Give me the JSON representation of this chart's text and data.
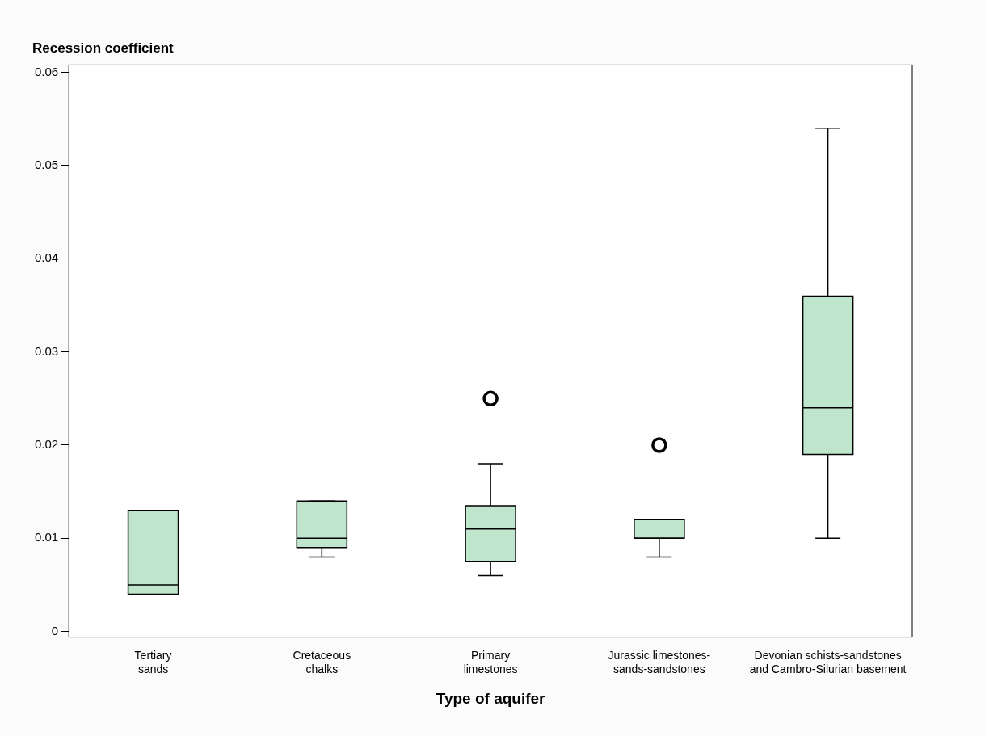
{
  "chart_data": {
    "type": "box",
    "ylabel": "Recession coefficient",
    "xlabel": "Type of aquifer",
    "categories": [
      "Tertiary sands",
      "Cretaceous chalks",
      "Primary limestones",
      "Jurassic limestones-sands-sandstones",
      "Devonian schists-sandstones and Cambro-Silurian basement"
    ],
    "color": "#bfe6cc",
    "boxes": [
      {
        "low": 0.004,
        "q1": 0.004,
        "median": 0.005,
        "q3": 0.013,
        "high": 0.013
      },
      {
        "low": 0.008,
        "q1": 0.009,
        "median": 0.01,
        "q3": 0.014,
        "high": 0.014
      },
      {
        "low": 0.006,
        "q1": 0.0075,
        "median": 0.011,
        "q3": 0.0135,
        "high": 0.018,
        "outliers": [
          0.025
        ]
      },
      {
        "low": 0.008,
        "q1": 0.01,
        "median": 0.01,
        "q3": 0.012,
        "high": 0.012,
        "outliers": [
          0.02
        ]
      },
      {
        "low": 0.01,
        "q1": 0.019,
        "median": 0.024,
        "q3": 0.036,
        "high": 0.054
      }
    ],
    "ylim": [
      -0.0006,
      0.0608
    ],
    "yticks": [
      0,
      0.01,
      0.02,
      0.03,
      0.04,
      0.05,
      0.06
    ],
    "grid": false,
    "legend": false,
    "marker": "circle"
  }
}
